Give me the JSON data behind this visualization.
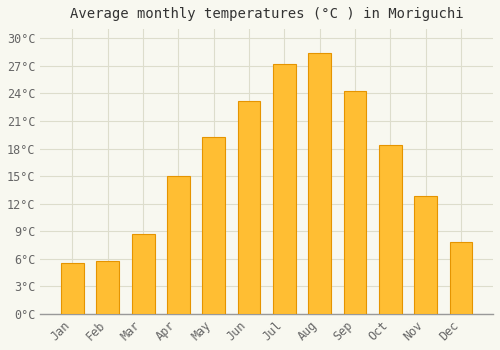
{
  "title": "Average monthly temperatures (°C ) in Moriguchi",
  "months": [
    "Jan",
    "Feb",
    "Mar",
    "Apr",
    "May",
    "Jun",
    "Jul",
    "Aug",
    "Sep",
    "Oct",
    "Nov",
    "Dec"
  ],
  "temperatures": [
    5.5,
    5.8,
    8.7,
    15.0,
    19.3,
    23.2,
    27.2,
    28.4,
    24.3,
    18.4,
    12.8,
    7.8
  ],
  "bar_color_gradient_bottom": "#F5A623",
  "bar_color_gradient_top": "#FFD966",
  "bar_color": "#FFBE33",
  "bar_edge_color": "#E59400",
  "background_color": "#F8F8F0",
  "grid_color": "#DDDDCC",
  "yticks": [
    0,
    3,
    6,
    9,
    12,
    15,
    18,
    21,
    24,
    27,
    30
  ],
  "ylim": [
    0,
    31
  ],
  "title_fontsize": 10,
  "tick_fontsize": 8.5,
  "title_color": "#333333",
  "tick_color": "#666666"
}
